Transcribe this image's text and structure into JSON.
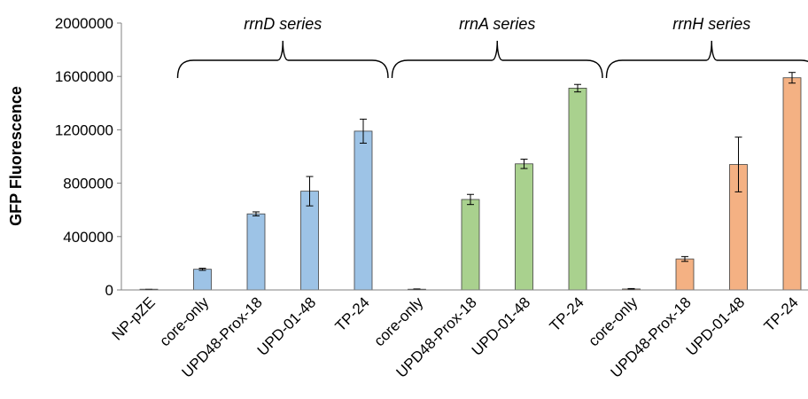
{
  "chart_data": {
    "type": "bar",
    "ylabel": "GFP Fluorescence",
    "ylim": [
      0,
      2000000
    ],
    "yticks": [
      "0",
      "400000",
      "800000",
      "1200000",
      "1600000",
      "2000000"
    ],
    "grid": false,
    "categories": [
      "NP-pZE",
      "core-only",
      "UPD48-Prox-18",
      "UPD-01-48",
      "TP-24",
      "core-only",
      "UPD48-Prox-18",
      "UPD-01-48",
      "TP-24",
      "core-only",
      "UPD48-Prox-18",
      "UPD-01-48",
      "TP-24"
    ],
    "values": [
      3000,
      155000,
      570000,
      740000,
      1190000,
      5000,
      678000,
      945000,
      1512000,
      7000,
      232000,
      940000,
      1590000
    ],
    "errors": [
      1500,
      8000,
      15000,
      110000,
      90000,
      2500,
      38000,
      35000,
      28000,
      3500,
      18000,
      205000,
      40000
    ],
    "bar_colors": [
      "#9DC3E6",
      "#9DC3E6",
      "#9DC3E6",
      "#9DC3E6",
      "#9DC3E6",
      "#A9D18E",
      "#A9D18E",
      "#A9D18E",
      "#A9D18E",
      "#F4B183",
      "#F4B183",
      "#F4B183",
      "#F4B183"
    ],
    "groups": [
      {
        "label": "rrnD series",
        "first": 1,
        "last": 4
      },
      {
        "label": "rrnA series",
        "first": 5,
        "last": 8
      },
      {
        "label": "rrnH series",
        "first": 9,
        "last": 12
      }
    ]
  }
}
